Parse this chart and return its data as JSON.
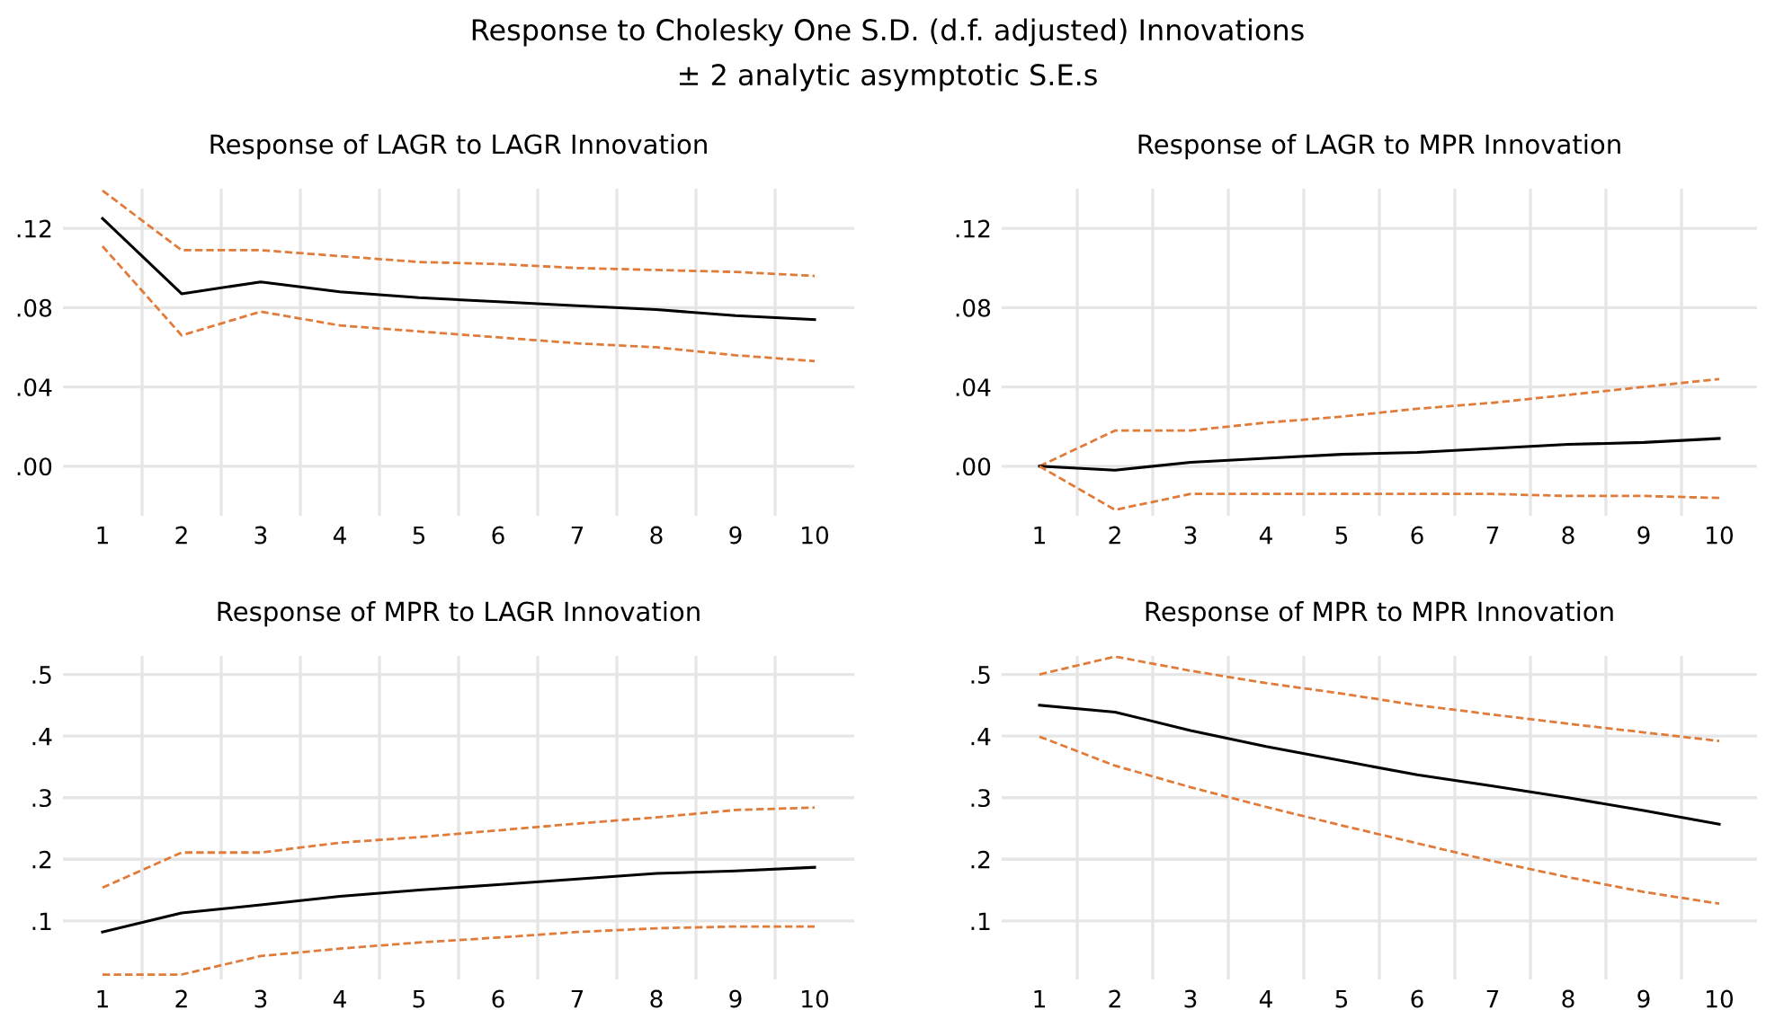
{
  "chart_data": [
    {
      "type": "other",
      "title": "Response to Cholesky One S.D. (d.f. adjusted) Innovations",
      "subtitle": "± 2 analytic asymptotic S.E.s"
    },
    {
      "type": "line",
      "title": "Response of LAGR to LAGR Innovation",
      "categories": [
        "1",
        "2",
        "3",
        "4",
        "5",
        "6",
        "7",
        "8",
        "9",
        "10"
      ],
      "ylim": [
        -0.025,
        0.14
      ],
      "yticks": [
        {
          "value": 0,
          "label": ".00"
        },
        {
          "value": 0.04,
          "label": ".04"
        },
        {
          "value": 0.08,
          "label": ".08"
        },
        {
          "value": 0.12,
          "label": ".12"
        }
      ],
      "grid": true,
      "legend": false,
      "series": [
        {
          "color": "#e07b39",
          "line_style": "dashed",
          "values": [
            0.139,
            0.109,
            0.109,
            0.106,
            0.103,
            0.102,
            0.1,
            0.099,
            0.098,
            0.096
          ]
        },
        {
          "color": "#000000",
          "line_style": "solid",
          "values": [
            0.125,
            0.087,
            0.093,
            0.088,
            0.085,
            0.083,
            0.081,
            0.079,
            0.076,
            0.074
          ]
        },
        {
          "color": "#e07b39",
          "line_style": "dashed",
          "values": [
            0.111,
            0.066,
            0.078,
            0.071,
            0.068,
            0.065,
            0.062,
            0.06,
            0.056,
            0.053
          ]
        }
      ]
    },
    {
      "type": "line",
      "title": "Response of LAGR to MPR Innovation",
      "categories": [
        "1",
        "2",
        "3",
        "4",
        "5",
        "6",
        "7",
        "8",
        "9",
        "10"
      ],
      "ylim": [
        -0.025,
        0.14
      ],
      "yticks": [
        {
          "value": 0,
          "label": ".00"
        },
        {
          "value": 0.04,
          "label": ".04"
        },
        {
          "value": 0.08,
          "label": ".08"
        },
        {
          "value": 0.12,
          "label": ".12"
        }
      ],
      "grid": true,
      "legend": false,
      "series": [
        {
          "color": "#e07b39",
          "line_style": "dashed",
          "values": [
            0.0,
            0.018,
            0.018,
            0.022,
            0.025,
            0.029,
            0.032,
            0.036,
            0.04,
            0.044
          ]
        },
        {
          "color": "#000000",
          "line_style": "solid",
          "values": [
            0.0,
            -0.002,
            0.002,
            0.004,
            0.006,
            0.007,
            0.009,
            0.011,
            0.012,
            0.014
          ]
        },
        {
          "color": "#e07b39",
          "line_style": "dashed",
          "values": [
            0.0,
            -0.022,
            -0.014,
            -0.014,
            -0.014,
            -0.014,
            -0.014,
            -0.015,
            -0.015,
            -0.016
          ]
        }
      ]
    },
    {
      "type": "line",
      "title": "Response of MPR to LAGR Innovation",
      "categories": [
        "1",
        "2",
        "3",
        "4",
        "5",
        "6",
        "7",
        "8",
        "9",
        "10"
      ],
      "ylim": [
        0.005,
        0.53
      ],
      "yticks": [
        {
          "value": 0.1,
          "label": ".1"
        },
        {
          "value": 0.2,
          "label": ".2"
        },
        {
          "value": 0.3,
          "label": ".3"
        },
        {
          "value": 0.4,
          "label": ".4"
        },
        {
          "value": 0.5,
          "label": ".5"
        }
      ],
      "grid": true,
      "legend": false,
      "series": [
        {
          "color": "#e07b39",
          "line_style": "dashed",
          "values": [
            0.154,
            0.211,
            0.211,
            0.227,
            0.236,
            0.247,
            0.258,
            0.268,
            0.28,
            0.284
          ]
        },
        {
          "color": "#000000",
          "line_style": "solid",
          "values": [
            0.082,
            0.113,
            0.126,
            0.14,
            0.15,
            0.159,
            0.168,
            0.177,
            0.181,
            0.187
          ]
        },
        {
          "color": "#e07b39",
          "line_style": "dashed",
          "values": [
            0.013,
            0.013,
            0.043,
            0.055,
            0.065,
            0.073,
            0.082,
            0.088,
            0.091,
            0.091
          ]
        }
      ]
    },
    {
      "type": "line",
      "title": "Response of MPR to MPR Innovation",
      "categories": [
        "1",
        "2",
        "3",
        "4",
        "5",
        "6",
        "7",
        "8",
        "9",
        "10"
      ],
      "ylim": [
        0.005,
        0.53
      ],
      "yticks": [
        {
          "value": 0.1,
          "label": ".1"
        },
        {
          "value": 0.2,
          "label": ".2"
        },
        {
          "value": 0.3,
          "label": ".3"
        },
        {
          "value": 0.4,
          "label": ".4"
        },
        {
          "value": 0.5,
          "label": ".5"
        }
      ],
      "grid": true,
      "legend": false,
      "series": [
        {
          "color": "#e07b39",
          "line_style": "dashed",
          "values": [
            0.5,
            0.529,
            0.506,
            0.486,
            0.469,
            0.45,
            0.435,
            0.42,
            0.406,
            0.392
          ]
        },
        {
          "color": "#000000",
          "line_style": "solid",
          "values": [
            0.45,
            0.439,
            0.409,
            0.383,
            0.36,
            0.337,
            0.319,
            0.3,
            0.279,
            0.257
          ]
        },
        {
          "color": "#e07b39",
          "line_style": "dashed",
          "values": [
            0.399,
            0.352,
            0.317,
            0.285,
            0.255,
            0.226,
            0.197,
            0.171,
            0.147,
            0.128
          ]
        }
      ]
    }
  ]
}
